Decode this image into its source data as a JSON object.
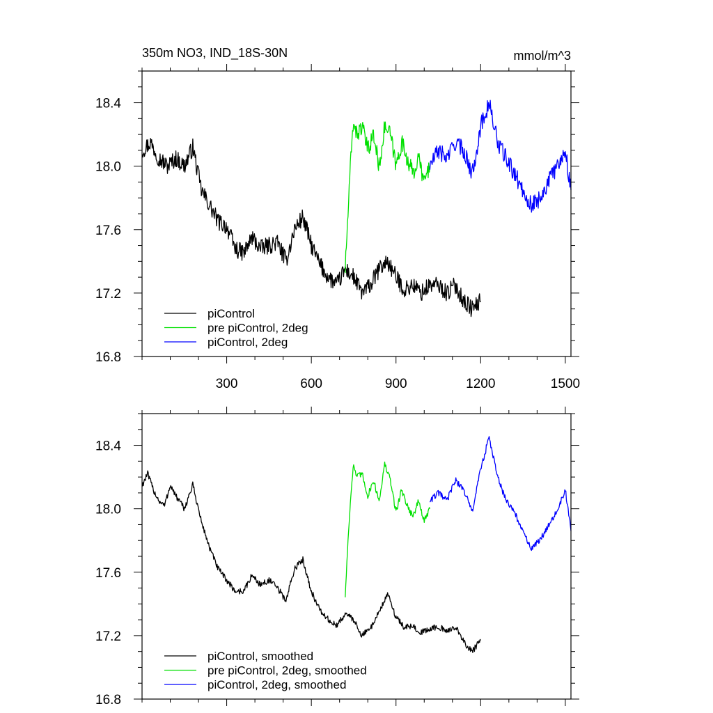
{
  "chart_data": [
    {
      "type": "line",
      "title": "350m NO3, IND_18S-30N",
      "units": "mmol/m^3",
      "xlabel": "",
      "ylabel": "",
      "xlim": [
        0,
        1520
      ],
      "ylim": [
        16.8,
        18.6
      ],
      "xticks": [
        300,
        600,
        900,
        1200,
        1500
      ],
      "xtick_labels": [
        "300",
        "600",
        "900",
        "1200",
        "1500"
      ],
      "yticks": [
        16.8,
        17.2,
        17.6,
        18.0,
        18.4
      ],
      "ytick_labels": [
        "16.8",
        "17.2",
        "17.6",
        "18.0",
        "18.4"
      ],
      "grid": false,
      "legend_position": "bottom-left",
      "series": [
        {
          "name": "piControl",
          "color": "#000000",
          "x": [
            1,
            30,
            60,
            90,
            120,
            150,
            180,
            210,
            240,
            270,
            300,
            330,
            360,
            390,
            420,
            450,
            480,
            510,
            540,
            570,
            600,
            630,
            660,
            690,
            720,
            750,
            780,
            810,
            840,
            870,
            900,
            930,
            960,
            990,
            1020,
            1050,
            1080,
            1110,
            1140,
            1170,
            1200
          ],
          "y": [
            18.1,
            18.15,
            18.05,
            18.0,
            18.05,
            18.0,
            18.12,
            17.85,
            17.75,
            17.65,
            17.62,
            17.48,
            17.45,
            17.55,
            17.48,
            17.5,
            17.52,
            17.4,
            17.6,
            17.68,
            17.5,
            17.38,
            17.3,
            17.25,
            17.35,
            17.3,
            17.2,
            17.25,
            17.35,
            17.4,
            17.3,
            17.22,
            17.25,
            17.2,
            17.25,
            17.25,
            17.2,
            17.25,
            17.15,
            17.1,
            17.15
          ]
        },
        {
          "name": "pre piControl, 2deg",
          "color": "#00e000",
          "x": [
            720,
            730,
            740,
            750,
            760,
            780,
            800,
            820,
            840,
            860,
            880,
            900,
            920,
            940,
            960,
            980,
            1000,
            1020
          ],
          "y": [
            17.35,
            17.7,
            18.05,
            18.3,
            18.2,
            18.25,
            18.1,
            18.2,
            18.0,
            18.25,
            18.2,
            18.0,
            18.15,
            18.05,
            17.95,
            18.05,
            17.9,
            18.0
          ]
        },
        {
          "name": "piControl, 2deg",
          "color": "#0000ff",
          "x": [
            1020,
            1050,
            1080,
            1110,
            1140,
            1170,
            1200,
            1230,
            1260,
            1290,
            1320,
            1350,
            1380,
            1410,
            1440,
            1470,
            1500,
            1520
          ],
          "y": [
            18.0,
            18.1,
            18.05,
            18.15,
            18.1,
            17.95,
            18.25,
            18.4,
            18.15,
            18.05,
            17.95,
            17.85,
            17.75,
            17.8,
            17.9,
            18.0,
            18.1,
            17.85
          ]
        }
      ]
    },
    {
      "type": "line",
      "title": "",
      "xlabel": "",
      "ylabel": "",
      "xlim": [
        0,
        1520
      ],
      "ylim": [
        16.8,
        18.6
      ],
      "xticks": [
        300,
        600,
        900,
        1200,
        1500
      ],
      "yticks": [
        16.8,
        17.2,
        17.6,
        18.0,
        18.4
      ],
      "ytick_labels": [
        "16.8",
        "17.2",
        "17.6",
        "18.0",
        "18.4"
      ],
      "grid": false,
      "legend_position": "bottom-left",
      "series": [
        {
          "name": "piControl, smoothed",
          "color": "#000000",
          "x": [
            1,
            20,
            40,
            60,
            80,
            100,
            120,
            150,
            180,
            210,
            240,
            270,
            300,
            330,
            360,
            390,
            420,
            450,
            480,
            510,
            540,
            570,
            600,
            630,
            660,
            690,
            720,
            750,
            780,
            810,
            840,
            870,
            900,
            930,
            960,
            990,
            1020,
            1050,
            1080,
            1110,
            1140,
            1170,
            1200
          ],
          "y": [
            18.15,
            18.22,
            18.12,
            18.05,
            18.02,
            18.15,
            18.08,
            18.0,
            18.15,
            17.92,
            17.75,
            17.62,
            17.55,
            17.48,
            17.48,
            17.58,
            17.52,
            17.55,
            17.5,
            17.42,
            17.62,
            17.68,
            17.48,
            17.36,
            17.3,
            17.26,
            17.34,
            17.3,
            17.2,
            17.25,
            17.35,
            17.46,
            17.32,
            17.25,
            17.26,
            17.22,
            17.24,
            17.26,
            17.22,
            17.26,
            17.16,
            17.1,
            17.17
          ]
        },
        {
          "name": "pre piControl, 2deg, smoothed",
          "color": "#00e000",
          "x": [
            720,
            730,
            740,
            750,
            760,
            780,
            800,
            820,
            840,
            860,
            880,
            900,
            920,
            940,
            960,
            980,
            1000,
            1020
          ],
          "y": [
            17.45,
            17.8,
            18.1,
            18.28,
            18.2,
            18.22,
            18.08,
            18.18,
            18.05,
            18.28,
            18.18,
            17.98,
            18.12,
            18.02,
            17.95,
            18.05,
            17.92,
            18.0
          ]
        },
        {
          "name": "piControl, 2deg, smoothed",
          "color": "#0000ff",
          "x": [
            1020,
            1050,
            1080,
            1110,
            1140,
            1170,
            1200,
            1230,
            1260,
            1290,
            1320,
            1350,
            1380,
            1410,
            1440,
            1470,
            1500,
            1520
          ],
          "y": [
            18.05,
            18.1,
            18.05,
            18.18,
            18.12,
            17.98,
            18.25,
            18.45,
            18.2,
            18.05,
            17.98,
            17.85,
            17.75,
            17.8,
            17.9,
            17.98,
            18.12,
            17.86
          ]
        }
      ]
    }
  ]
}
